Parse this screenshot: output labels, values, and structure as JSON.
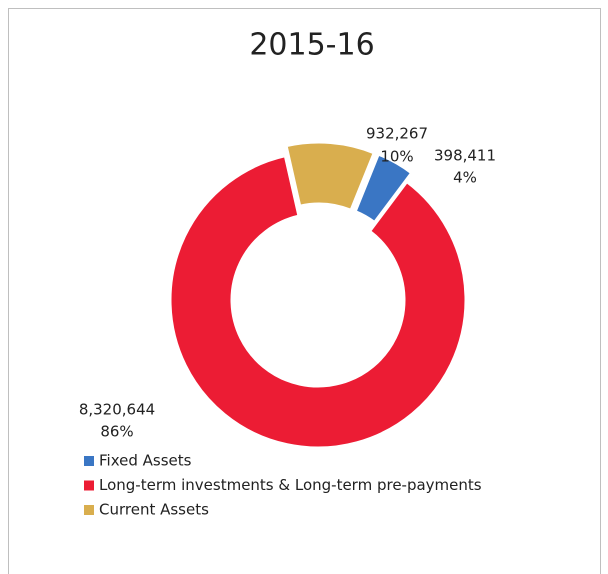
{
  "chart_data": {
    "type": "donut",
    "title": "2015-16",
    "categories": [
      "Fixed Assets",
      "Long-term investments & Long-term pre-payments",
      "Current Assets"
    ],
    "values": [
      398411,
      8320644,
      932267
    ],
    "value_labels": [
      "398,411",
      "8,320,644",
      "932,267"
    ],
    "percents": [
      4,
      86,
      10
    ],
    "percent_labels": [
      "4%",
      "86%",
      "10%"
    ],
    "colors": [
      "#3a76c4",
      "#ec1c34",
      "#d9ae4e"
    ],
    "legend": "bottom"
  }
}
